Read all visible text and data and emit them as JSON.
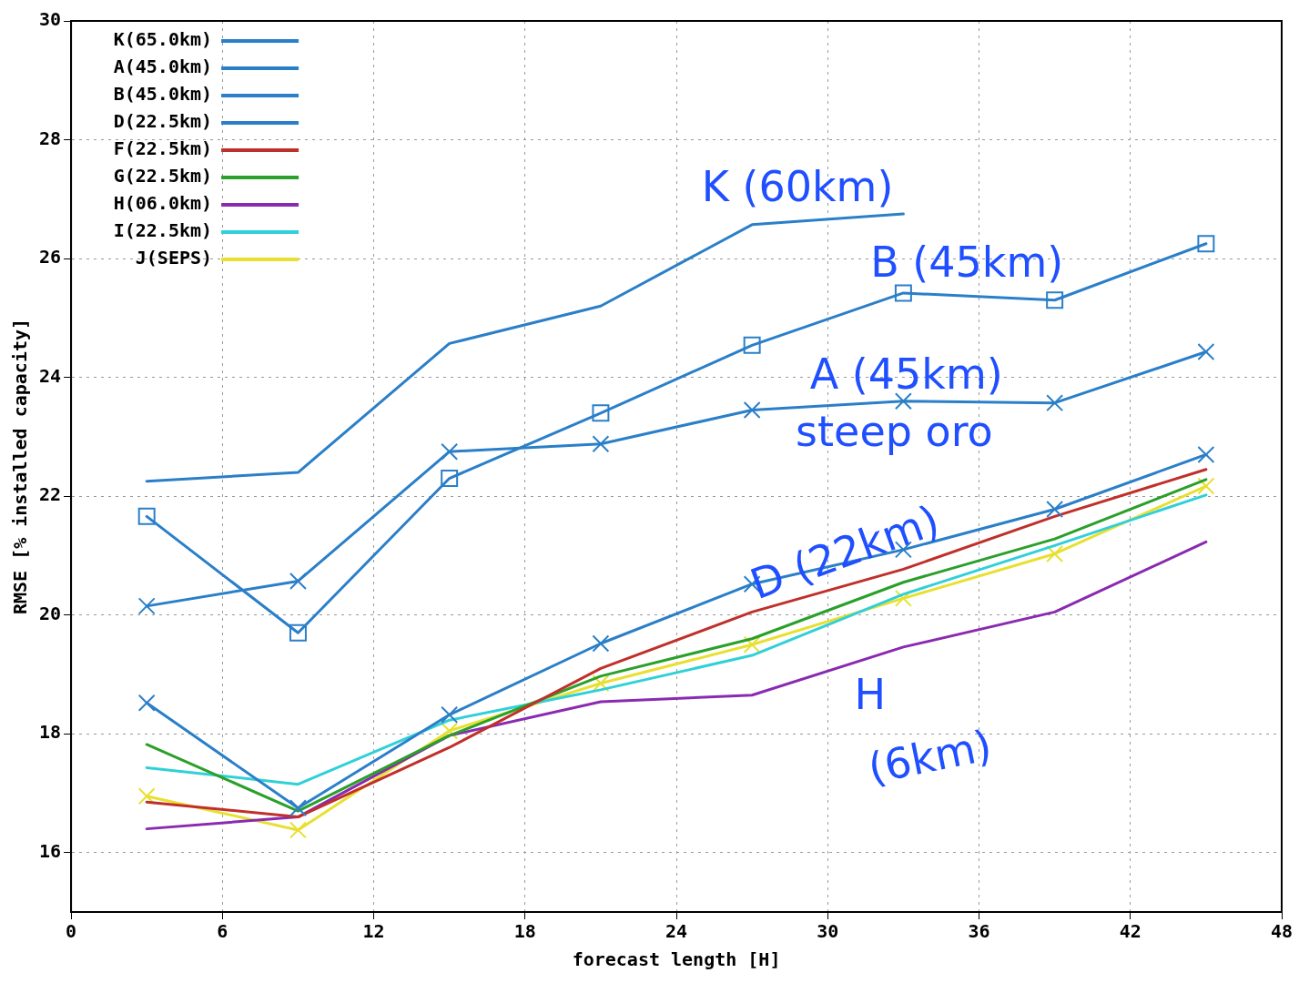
{
  "chart_data": {
    "type": "line",
    "xlabel": "forecast length [H]",
    "ylabel": "RMSE [% installed capacity]",
    "x": [
      3,
      9,
      15,
      21,
      27,
      33,
      39,
      45
    ],
    "xlim": [
      0,
      48
    ],
    "xticks": [
      0,
      6,
      12,
      18,
      24,
      30,
      36,
      42,
      48
    ],
    "ylim": [
      15,
      30
    ],
    "yticks": [
      16,
      18,
      20,
      22,
      24,
      26,
      28,
      30
    ],
    "grid": true,
    "legend": "top left",
    "line_style": "solid",
    "series": [
      {
        "name": "K(65.0km)",
        "color": "#2a7fc8",
        "marker": "none",
        "values": [
          22.25,
          22.4,
          24.57,
          25.2,
          26.57,
          26.75,
          null,
          null
        ]
      },
      {
        "name": "A(45.0km)",
        "color": "#2a7fc8",
        "marker": "cross",
        "values": [
          20.15,
          20.57,
          22.75,
          22.88,
          23.45,
          23.6,
          23.57,
          24.43
        ]
      },
      {
        "name": "B(45.0km)",
        "color": "#2a7fc8",
        "marker": "square",
        "values": [
          21.66,
          19.7,
          22.3,
          23.4,
          24.54,
          25.42,
          25.3,
          26.25
        ]
      },
      {
        "name": "D(22.5km)",
        "color": "#2a7fc8",
        "marker": "cross",
        "values": [
          18.52,
          16.75,
          18.32,
          19.52,
          20.52,
          21.1,
          21.78,
          22.7
        ]
      },
      {
        "name": "F(22.5km)",
        "color": "#c0302a",
        "marker": "none",
        "values": [
          16.85,
          16.6,
          17.77,
          19.1,
          20.05,
          20.77,
          21.66,
          22.45
        ]
      },
      {
        "name": "G(22.5km)",
        "color": "#2aa02a",
        "marker": "none",
        "values": [
          17.82,
          16.7,
          17.97,
          18.97,
          19.6,
          20.55,
          21.28,
          22.28
        ]
      },
      {
        "name": "H(06.0km)",
        "color": "#8a2ab0",
        "marker": "none",
        "values": [
          16.4,
          16.6,
          17.97,
          18.54,
          18.65,
          19.46,
          20.05,
          21.23
        ]
      },
      {
        "name": "I(22.5km)",
        "color": "#30d0d8",
        "marker": "none",
        "values": [
          17.43,
          17.15,
          18.23,
          18.74,
          19.32,
          20.35,
          21.17,
          22.02
        ]
      },
      {
        "name": "J(SEPS)",
        "color": "#e8e030",
        "marker": "cross",
        "values": [
          16.95,
          16.38,
          18.05,
          18.85,
          19.5,
          20.28,
          21.03,
          22.17
        ]
      }
    ],
    "annotations": [
      "K (60km)",
      "B (45km)",
      "A (45km)",
      "steep oro",
      "D (22km)",
      "H",
      "(6km)"
    ]
  }
}
